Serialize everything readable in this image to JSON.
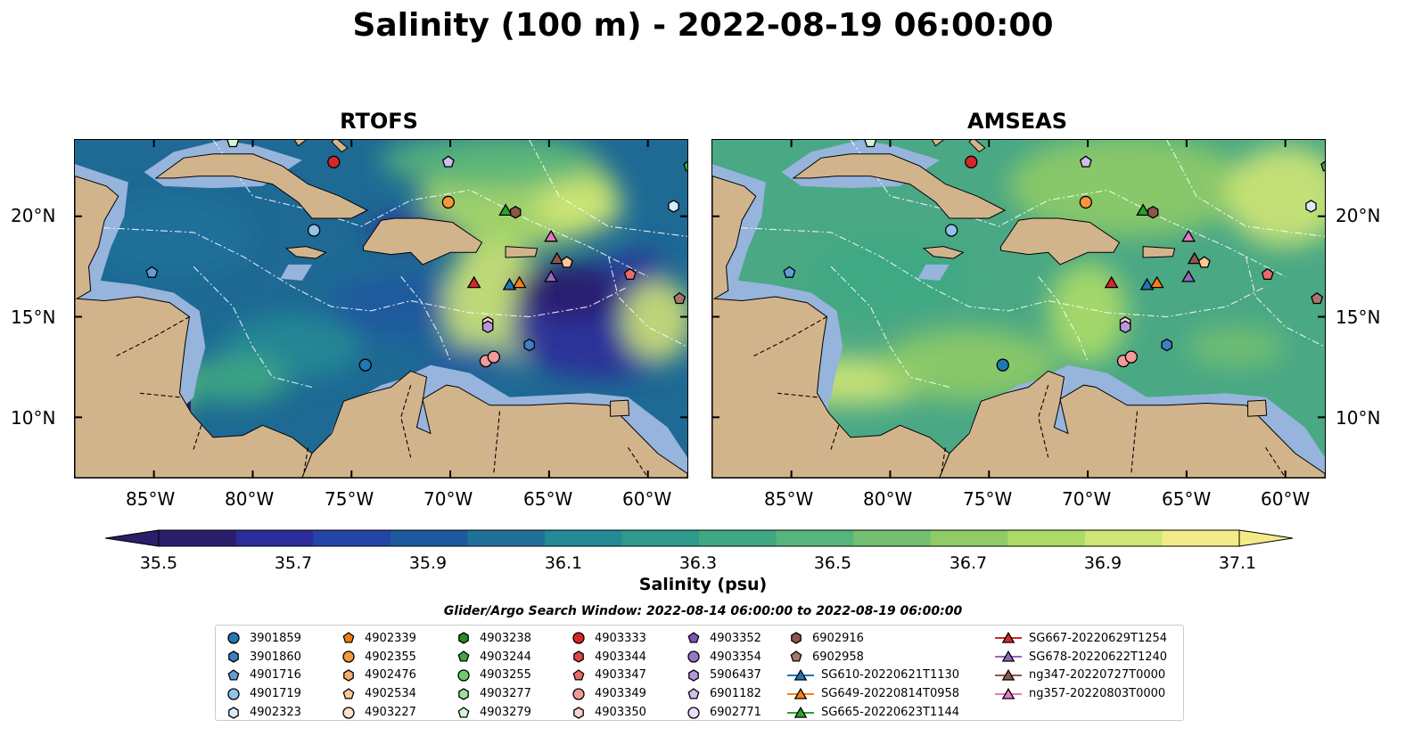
{
  "title": "Salinity (100 m) - 2022-08-19 06:00:00",
  "panels": [
    {
      "name": "RTOFS"
    },
    {
      "name": "AMSEAS"
    }
  ],
  "lat_ticks": [
    "20°N",
    "15°N",
    "10°N"
  ],
  "lon_ticks": [
    "85°W",
    "80°W",
    "75°W",
    "70°W",
    "65°W",
    "60°W"
  ],
  "colorbar": {
    "label": "Salinity (psu)",
    "ticks": [
      "35.5",
      "35.7",
      "35.9",
      "36.1",
      "36.3",
      "36.5",
      "36.7",
      "36.9",
      "37.1"
    ],
    "colors": [
      "#2a1d6a",
      "#2c2b9a",
      "#2444a6",
      "#1e5aa0",
      "#20719a",
      "#248a95",
      "#2e9a8b",
      "#3fa883",
      "#57b47a",
      "#72c070",
      "#8fcb66",
      "#addb66",
      "#cfe576",
      "#f4ea88"
    ],
    "colormap": "haline"
  },
  "colors": {
    "land": "#d2b48c",
    "shelf": "#96b4dc",
    "rtofs_base": "#1e6a94",
    "amseas_base": "#4aa885"
  },
  "search_window": "Glider/Argo Search Window: 2022-08-14 06:00:00 to 2022-08-19 06:00:00",
  "legend": [
    [
      {
        "label": "3901859",
        "marker": "circle",
        "color": "#1f77b4"
      },
      {
        "label": "3901860",
        "marker": "hexagon",
        "color": "#3f7fc4"
      },
      {
        "label": "4901716",
        "marker": "pentagon",
        "color": "#5f9fd4"
      },
      {
        "label": "4901719",
        "marker": "circle",
        "color": "#8fc4e8"
      },
      {
        "label": "4902323",
        "marker": "hexagon",
        "color": "#d6ecfa"
      }
    ],
    [
      {
        "label": "4902339",
        "marker": "pentagon",
        "color": "#f07f0e"
      },
      {
        "label": "4902355",
        "marker": "circle",
        "color": "#f9953a"
      },
      {
        "label": "4902476",
        "marker": "hexagon",
        "color": "#fbac6a"
      },
      {
        "label": "4902534",
        "marker": "pentagon",
        "color": "#fdc896"
      },
      {
        "label": "4903227",
        "marker": "circle",
        "color": "#ffe3c6"
      }
    ],
    [
      {
        "label": "4903238",
        "marker": "hexagon",
        "color": "#2a8a2a"
      },
      {
        "label": "4903244",
        "marker": "pentagon",
        "color": "#3fa83f"
      },
      {
        "label": "4903255",
        "marker": "circle",
        "color": "#6ccd6c"
      },
      {
        "label": "4903277",
        "marker": "hexagon",
        "color": "#9fe09f"
      },
      {
        "label": "4903279",
        "marker": "pentagon",
        "color": "#d4f5d4"
      }
    ],
    [
      {
        "label": "4903333",
        "marker": "circle",
        "color": "#d62728"
      },
      {
        "label": "4903344",
        "marker": "hexagon",
        "color": "#e04446"
      },
      {
        "label": "4903347",
        "marker": "pentagon",
        "color": "#ea6b6c"
      },
      {
        "label": "4903349",
        "marker": "circle",
        "color": "#f29a9a"
      },
      {
        "label": "4903350",
        "marker": "hexagon",
        "color": "#fbd0d0"
      }
    ],
    [
      {
        "label": "4903352",
        "marker": "pentagon",
        "color": "#7e55b4"
      },
      {
        "label": "4903354",
        "marker": "circle",
        "color": "#9a76c8"
      },
      {
        "label": "5906437",
        "marker": "hexagon",
        "color": "#b597dc"
      },
      {
        "label": "6901182",
        "marker": "pentagon",
        "color": "#d3bcf0"
      },
      {
        "label": "6902771",
        "marker": "circle",
        "color": "#e9dcfb"
      }
    ],
    [
      {
        "label": "6902916",
        "marker": "hexagon",
        "color": "#8c564b"
      },
      {
        "label": "6902958",
        "marker": "pentagon",
        "color": "#a8756a"
      },
      {
        "label": "SG610-20220621T1130",
        "marker": "triangle-line",
        "color": "#1f77b4"
      },
      {
        "label": "SG649-20220814T0958",
        "marker": "triangle-line",
        "color": "#ff7f0e"
      },
      {
        "label": "SG665-20220623T1144",
        "marker": "triangle-line",
        "color": "#2ca02c"
      }
    ],
    [
      {
        "label": "SG667-20220629T1254",
        "marker": "triangle-line",
        "color": "#d62728"
      },
      {
        "label": "SG678-20220622T1240",
        "marker": "triangle-line",
        "color": "#9467bd"
      },
      {
        "label": "ng347-20220727T0000",
        "marker": "triangle-line",
        "color": "#8c564b"
      },
      {
        "label": "ng357-20220803T0000",
        "marker": "triangle-line",
        "color": "#e377c2"
      }
    ]
  ],
  "observations": [
    {
      "id": "4903333",
      "lon": -75.9,
      "lat": 22.7,
      "marker": "circle",
      "color": "#d62728"
    },
    {
      "id": "6901182",
      "lon": -70.1,
      "lat": 22.7,
      "marker": "pentagon",
      "color": "#d3bcf0"
    },
    {
      "id": "4902355",
      "lon": -70.1,
      "lat": 20.7,
      "marker": "circle",
      "color": "#f9953a"
    },
    {
      "id": "SG665-20220623T1144",
      "lon": -67.2,
      "lat": 20.3,
      "marker": "triangle",
      "color": "#2ca02c"
    },
    {
      "id": "6902916",
      "lon": -66.7,
      "lat": 20.2,
      "marker": "hexagon",
      "color": "#8c564b"
    },
    {
      "id": "4901719",
      "lon": -76.9,
      "lat": 19.3,
      "marker": "circle",
      "color": "#8fc4e8"
    },
    {
      "id": "ng357-20220803T0000",
      "lon": -64.9,
      "lat": 19.0,
      "marker": "triangle",
      "color": "#e377c2"
    },
    {
      "id": "ng347-20220727T0000",
      "lon": -64.6,
      "lat": 17.9,
      "marker": "triangle",
      "color": "#8c564b"
    },
    {
      "id": "4902534",
      "lon": -64.1,
      "lat": 17.7,
      "marker": "pentagon",
      "color": "#fdc896"
    },
    {
      "id": "4901716",
      "lon": -85.1,
      "lat": 17.2,
      "marker": "pentagon",
      "color": "#5f9fd4"
    },
    {
      "id": "4903347",
      "lon": -60.9,
      "lat": 17.1,
      "marker": "pentagon",
      "color": "#ea6b6c"
    },
    {
      "id": "SG678-20220622T1240",
      "lon": -64.9,
      "lat": 17.0,
      "marker": "triangle",
      "color": "#9467bd"
    },
    {
      "id": "SG667-20220629T1254",
      "lon": -68.8,
      "lat": 16.7,
      "marker": "triangle",
      "color": "#d62728"
    },
    {
      "id": "SG610-20220621T1130",
      "lon": -67.0,
      "lat": 16.6,
      "marker": "triangle",
      "color": "#1f77b4"
    },
    {
      "id": "SG649-20220814T0958",
      "lon": -66.5,
      "lat": 16.7,
      "marker": "triangle",
      "color": "#ff7f0e"
    },
    {
      "id": "6902958",
      "lon": -58.4,
      "lat": 15.9,
      "marker": "pentagon",
      "color": "#a8756a"
    },
    {
      "id": "4903350",
      "lon": -68.1,
      "lat": 14.7,
      "marker": "hexagon",
      "color": "#fbd0d0"
    },
    {
      "id": "5906437",
      "lon": -68.1,
      "lat": 14.5,
      "marker": "hexagon",
      "color": "#b597dc"
    },
    {
      "id": "3901860",
      "lon": -66.0,
      "lat": 13.6,
      "marker": "hexagon",
      "color": "#3f7fc4"
    },
    {
      "id": "4903349",
      "lon": -68.2,
      "lat": 12.8,
      "marker": "circle",
      "color": "#f29a9a"
    },
    {
      "id": "4903349b",
      "lon": -67.8,
      "lat": 13.0,
      "marker": "circle",
      "color": "#f29a9a"
    },
    {
      "id": "3901859",
      "lon": -74.3,
      "lat": 12.6,
      "marker": "circle",
      "color": "#1f77b4"
    },
    {
      "id": "4902323",
      "lon": -58.7,
      "lat": 20.5,
      "marker": "hexagon",
      "color": "#d6ecfa"
    },
    {
      "id": "4903244",
      "lon": -57.9,
      "lat": 22.5,
      "marker": "pentagon",
      "color": "#3fa83f"
    },
    {
      "id": "4903279",
      "lon": -81.0,
      "lat": 23.7,
      "marker": "pentagon",
      "color": "#d4f5d4"
    }
  ],
  "extent": {
    "lon_min": -89.0,
    "lon_max": -58.0,
    "lat_min": 7.0,
    "lat_max": 23.8
  }
}
